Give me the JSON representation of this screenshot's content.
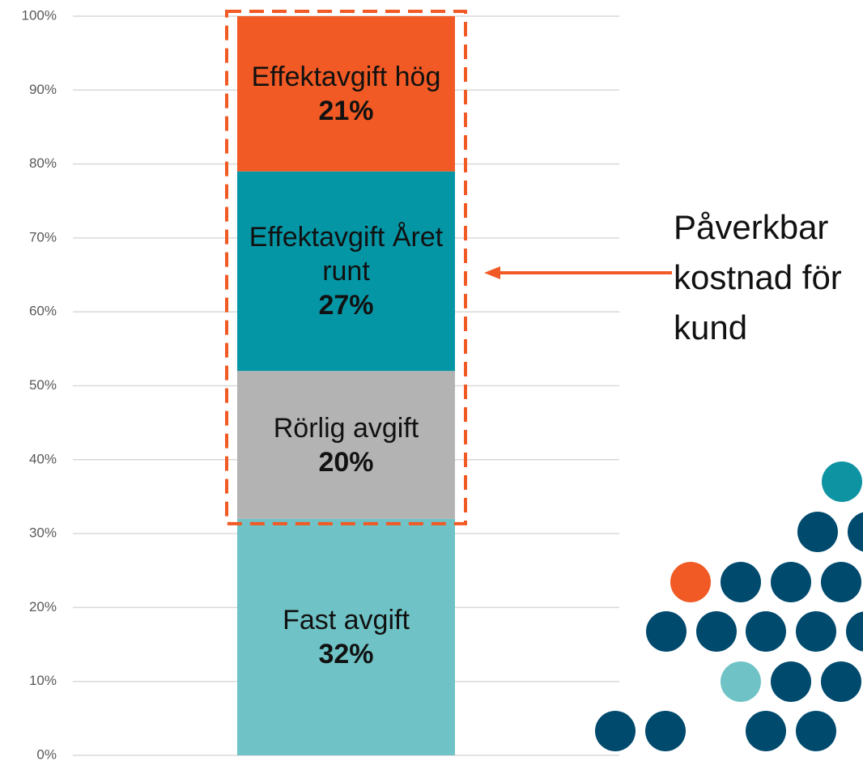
{
  "chart_data": {
    "type": "stacked-bar",
    "categories": [
      null
    ],
    "series": [
      {
        "name": "Fast avgift",
        "color": "#6fc3c6",
        "values": [
          32
        ],
        "value_labels": [
          "32%"
        ]
      },
      {
        "name": "Rörlig avgift",
        "color": "#b3b3b3",
        "values": [
          20
        ],
        "value_labels": [
          "20%"
        ]
      },
      {
        "name": "Effektavgift Året runt",
        "color": "#0596a6",
        "values": [
          27
        ],
        "value_labels": [
          "27%"
        ]
      },
      {
        "name": "Effektavgift hög",
        "color": "#f15a24",
        "values": [
          21
        ],
        "value_labels": [
          "21%"
        ]
      }
    ],
    "ylim": [
      0,
      100
    ],
    "yticks": [
      {
        "value": 0,
        "label": "0%"
      },
      {
        "value": 10,
        "label": "10%"
      },
      {
        "value": 20,
        "label": "20%"
      },
      {
        "value": 30,
        "label": "30%"
      },
      {
        "value": 40,
        "label": "40%"
      },
      {
        "value": 50,
        "label": "50%"
      },
      {
        "value": 60,
        "label": "60%"
      },
      {
        "value": 70,
        "label": "70%"
      },
      {
        "value": 80,
        "label": "80%"
      },
      {
        "value": 90,
        "label": "90%"
      },
      {
        "value": 100,
        "label": "100%"
      }
    ],
    "grid": true,
    "annotation": "Påverkbar kostnad för kund",
    "annotation_color": "#f15a24"
  }
}
